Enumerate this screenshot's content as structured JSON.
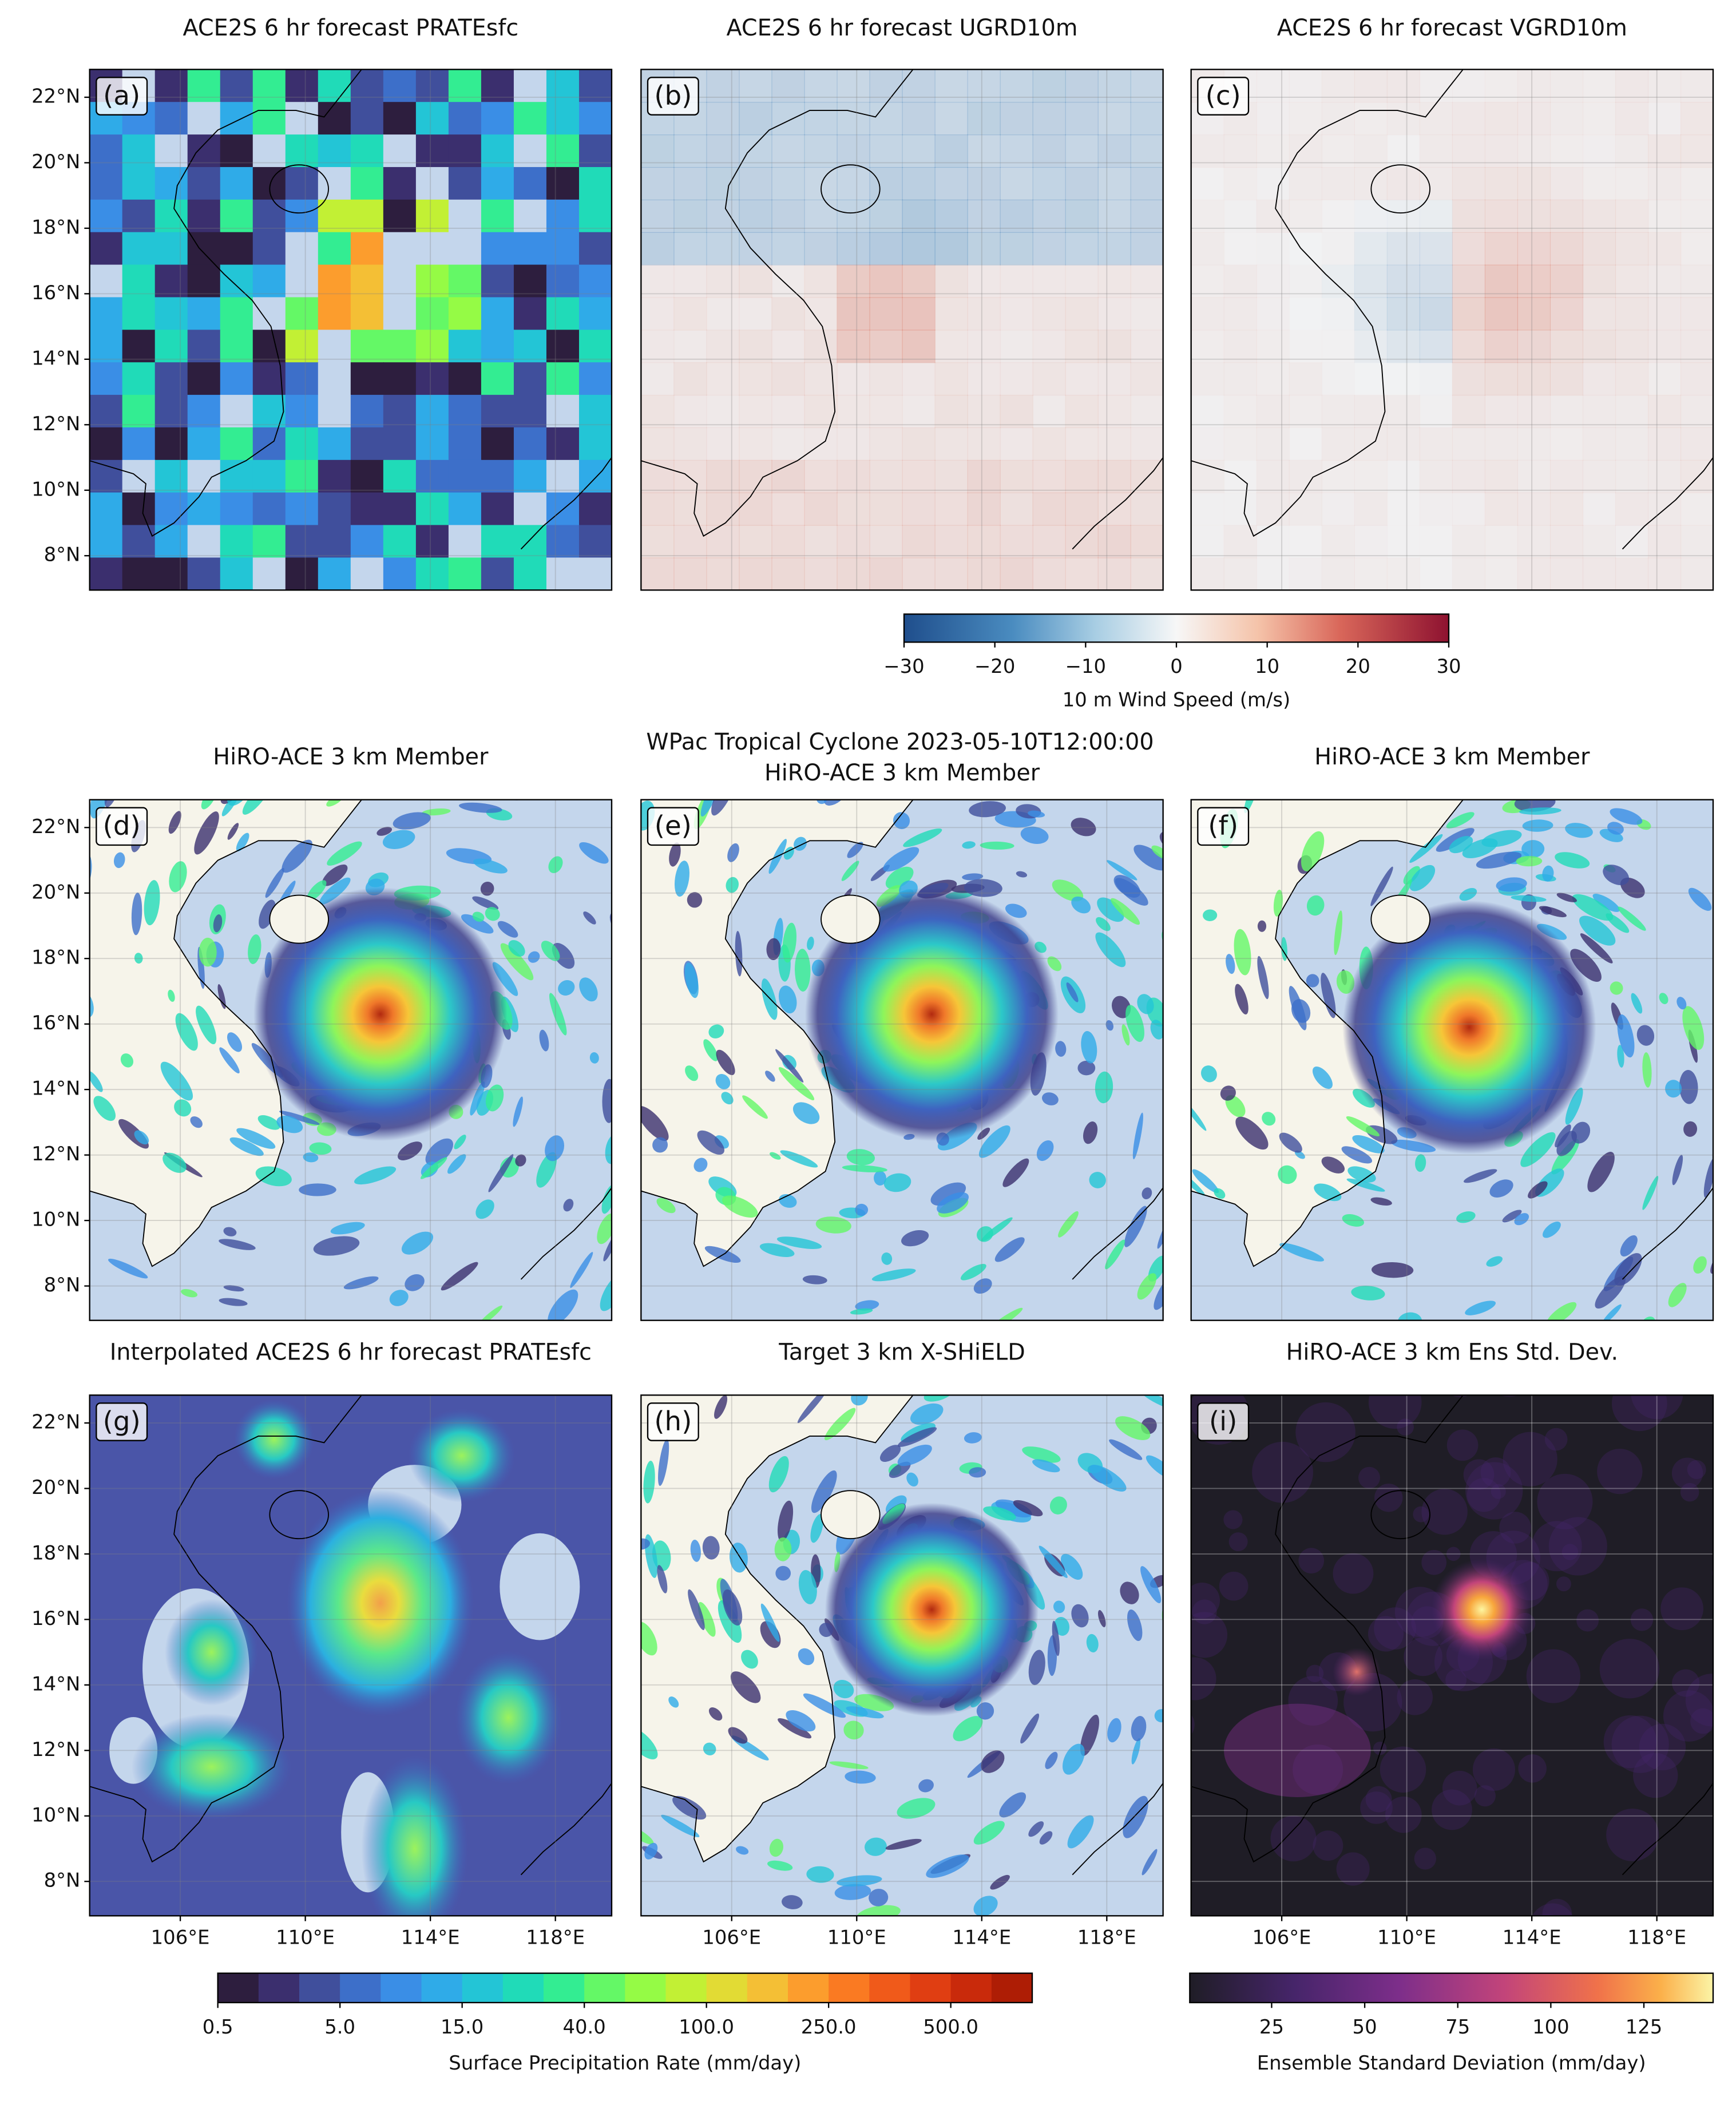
{
  "suptitle": "WPac Tropical Cyclone 2023-05-10T12:00:00",
  "panels": [
    {
      "label": "(a)",
      "title": "ACE2S 6 hr forecast PRATEsfc"
    },
    {
      "label": "(b)",
      "title": "ACE2S 6 hr forecast UGRD10m"
    },
    {
      "label": "(c)",
      "title": "ACE2S 6 hr forecast VGRD10m"
    },
    {
      "label": "(d)",
      "title": "HiRO-ACE 3 km Member"
    },
    {
      "label": "(e)",
      "title": "HiRO-ACE 3 km Member"
    },
    {
      "label": "(f)",
      "title": "HiRO-ACE 3 km Member"
    },
    {
      "label": "(g)",
      "title": "Interpolated ACE2S 6 hr forecast PRATEsfc"
    },
    {
      "label": "(h)",
      "title": "Target 3 km X-SHiELD"
    },
    {
      "label": "(i)",
      "title": "HiRO-ACE 3 km Ens Std. Dev."
    }
  ],
  "lon_lim": [
    103.1,
    119.8
  ],
  "lat_lim": [
    6.95,
    22.85
  ],
  "lat_ticks": [
    {
      "value": 8,
      "label": "8°N"
    },
    {
      "value": 10,
      "label": "10°N"
    },
    {
      "value": 12,
      "label": "12°N"
    },
    {
      "value": 14,
      "label": "14°N"
    },
    {
      "value": 16,
      "label": "16°N"
    },
    {
      "value": 18,
      "label": "18°N"
    },
    {
      "value": 20,
      "label": "20°N"
    },
    {
      "value": 22,
      "label": "22°N"
    }
  ],
  "lon_ticks": [
    {
      "value": 106,
      "label": "106°E"
    },
    {
      "value": 110,
      "label": "110°E"
    },
    {
      "value": 114,
      "label": "114°E"
    },
    {
      "value": 118,
      "label": "118°E"
    }
  ],
  "colorbars": [
    {
      "label": "10 m Wind Speed (m/s)",
      "lim": [
        -30,
        30
      ],
      "ticks": [
        {
          "value": -30,
          "label": "−30"
        },
        {
          "value": -20,
          "label": "−20"
        },
        {
          "value": -10,
          "label": "−10"
        },
        0,
        10,
        20,
        30
      ]
    },
    {
      "label": "Surface Precipitation Rate (mm/day)",
      "ticks": [
        0.5,
        {
          "value": 5,
          "label": "5.0"
        },
        {
          "value": 15,
          "label": "15.0"
        },
        {
          "value": 40,
          "label": "40.0"
        },
        {
          "value": 100,
          "label": "100.0"
        },
        {
          "value": 250,
          "label": "250.0"
        },
        {
          "value": 500,
          "label": "500.0"
        }
      ]
    },
    {
      "label": "Ensemble Standard Deviation (mm/day)",
      "lim": [
        3,
        143.6
      ],
      "ticks": [
        25,
        50,
        75,
        100,
        125
      ]
    }
  ]
}
